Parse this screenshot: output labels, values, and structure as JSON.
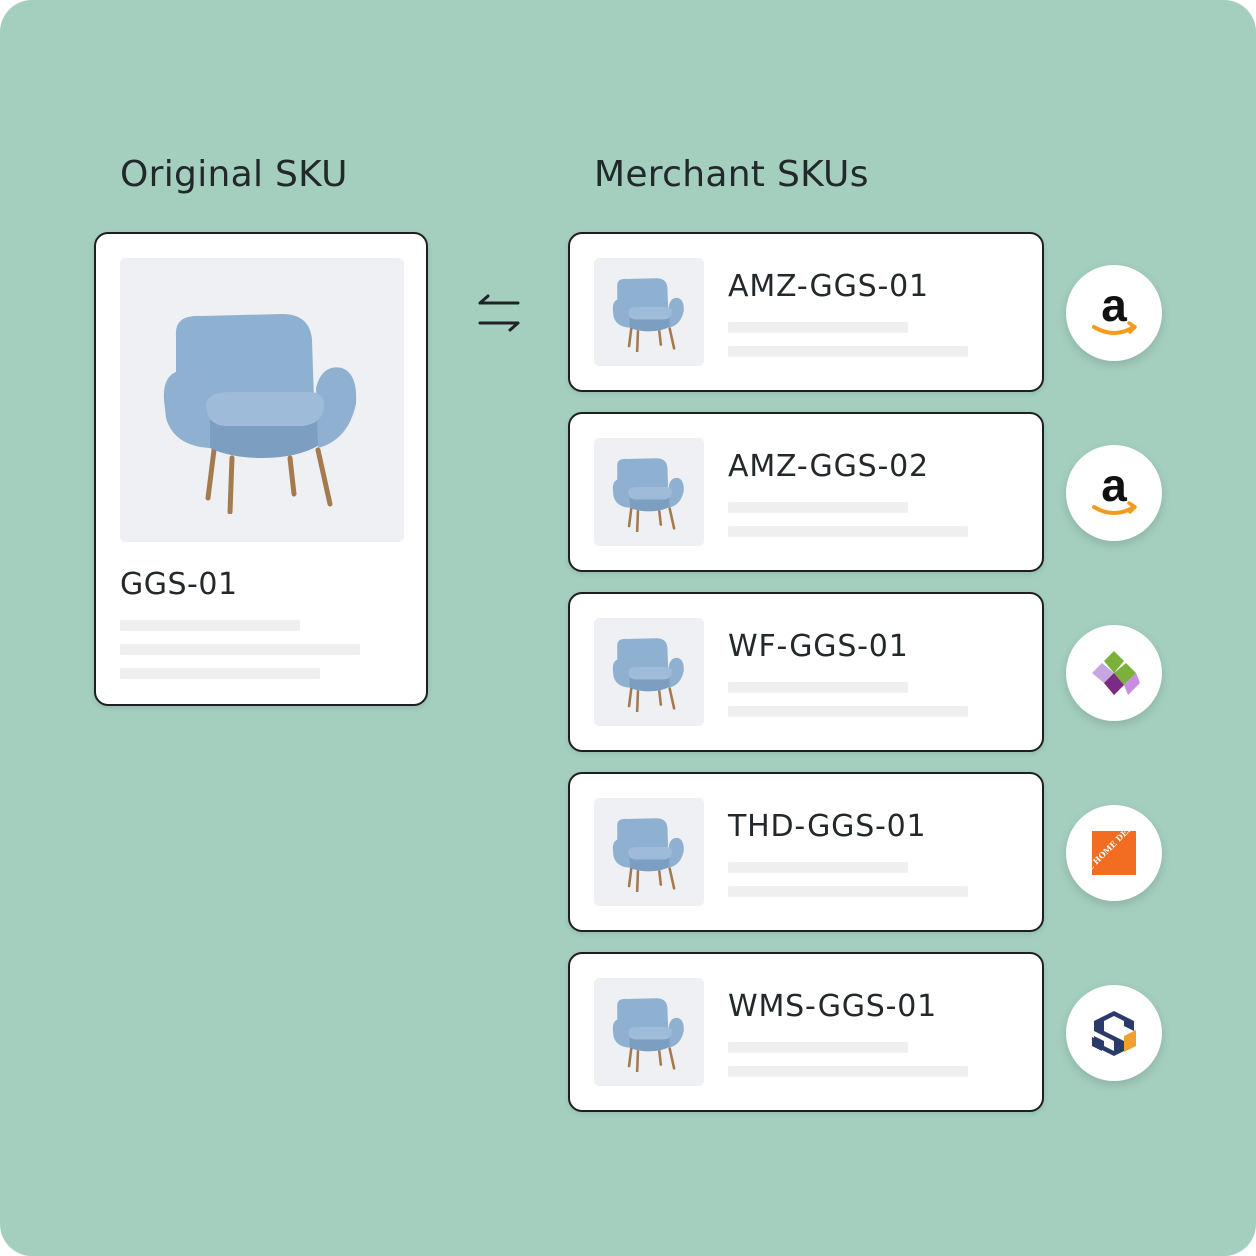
{
  "headings": {
    "original": "Original SKU",
    "merchant": "Merchant SKUs"
  },
  "original": {
    "sku": "GGS-01",
    "image_icon": "armchair-icon"
  },
  "swap_icon": "swap-arrows-icon",
  "merchant_skus": [
    {
      "sku": "AMZ-GGS-01",
      "logo": "amazon-logo",
      "logo_text": "a"
    },
    {
      "sku": "AMZ-GGS-02",
      "logo": "amazon-logo",
      "logo_text": "a"
    },
    {
      "sku": "WF-GGS-01",
      "logo": "wayfair-logo"
    },
    {
      "sku": "THD-GGS-01",
      "logo": "home-depot-logo",
      "logo_text": "THE HOME DEPOT"
    },
    {
      "sku": "WMS-GGS-01",
      "logo": "wms-logo"
    }
  ],
  "colors": {
    "background": "#a4cfbf",
    "card_border": "#1d1f20",
    "chair": "#8fb0d0",
    "amazon_arrow": "#f29b1d",
    "home_depot": "#f26d22",
    "wms_navy": "#2a3a6b",
    "wms_orange": "#f0a030"
  }
}
